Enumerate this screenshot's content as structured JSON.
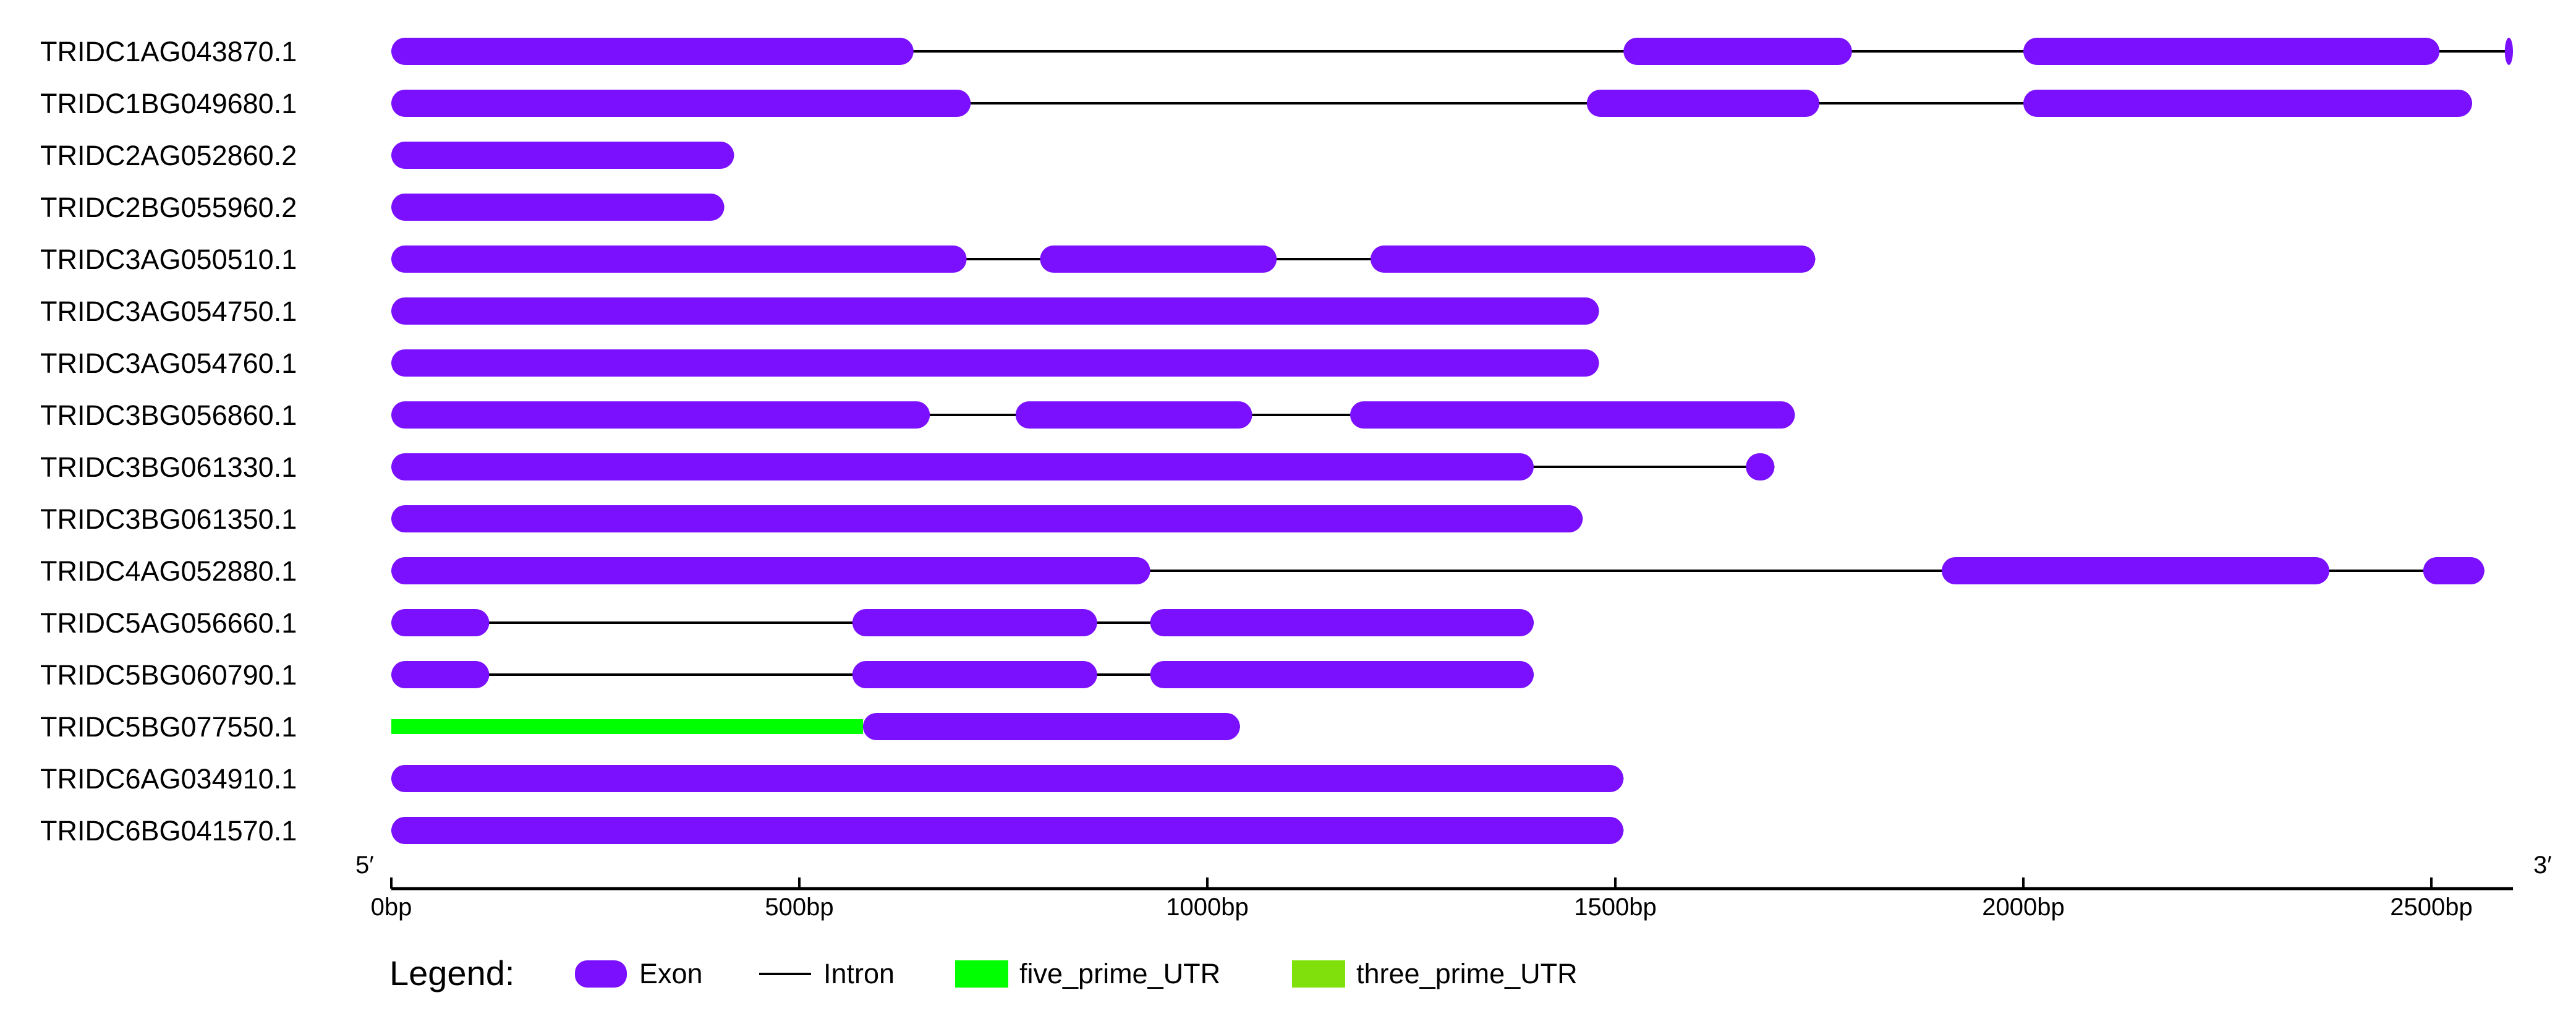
{
  "colors": {
    "exon": "#7B10FF",
    "intron": "#000000",
    "five_prime_UTR": "#00FF00",
    "three_prime_UTR": "#7FE00B"
  },
  "axis": {
    "min_bp": 0,
    "max_bp": 2600,
    "five_prime_label": "5′",
    "three_prime_label": "3′",
    "ticks": [
      {
        "value": 0,
        "label": "0bp"
      },
      {
        "value": 500,
        "label": "500bp"
      },
      {
        "value": 1000,
        "label": "1000bp"
      },
      {
        "value": 1500,
        "label": "1500bp"
      },
      {
        "value": 2000,
        "label": "2000bp"
      },
      {
        "value": 2500,
        "label": "2500bp"
      }
    ]
  },
  "genes": [
    {
      "name": "TRIDC1AG043870.1",
      "exons": [
        [
          0,
          640
        ],
        [
          1510,
          1790
        ],
        [
          2000,
          2510
        ],
        [
          2590,
          2600
        ]
      ],
      "five_prime_UTR": [],
      "three_prime_UTR": []
    },
    {
      "name": "TRIDC1BG049680.1",
      "exons": [
        [
          0,
          710
        ],
        [
          1465,
          1750
        ],
        [
          2000,
          2550
        ]
      ],
      "five_prime_UTR": [],
      "three_prime_UTR": []
    },
    {
      "name": "TRIDC2AG052860.2",
      "exons": [
        [
          0,
          420
        ]
      ],
      "five_prime_UTR": [],
      "three_prime_UTR": []
    },
    {
      "name": "TRIDC2BG055960.2",
      "exons": [
        [
          0,
          408
        ]
      ],
      "five_prime_UTR": [],
      "three_prime_UTR": []
    },
    {
      "name": "TRIDC3AG050510.1",
      "exons": [
        [
          0,
          705
        ],
        [
          795,
          1085
        ],
        [
          1200,
          1745
        ]
      ],
      "five_prime_UTR": [],
      "three_prime_UTR": []
    },
    {
      "name": "TRIDC3AG054750.1",
      "exons": [
        [
          0,
          1480
        ]
      ],
      "five_prime_UTR": [],
      "three_prime_UTR": []
    },
    {
      "name": "TRIDC3AG054760.1",
      "exons": [
        [
          0,
          1480
        ]
      ],
      "five_prime_UTR": [],
      "three_prime_UTR": []
    },
    {
      "name": "TRIDC3BG056860.1",
      "exons": [
        [
          0,
          660
        ],
        [
          765,
          1055
        ],
        [
          1175,
          1720
        ]
      ],
      "five_prime_UTR": [],
      "three_prime_UTR": []
    },
    {
      "name": "TRIDC3BG061330.1",
      "exons": [
        [
          0,
          1400
        ],
        [
          1660,
          1695
        ]
      ],
      "five_prime_UTR": [],
      "three_prime_UTR": []
    },
    {
      "name": "TRIDC3BG061350.1",
      "exons": [
        [
          0,
          1460
        ]
      ],
      "five_prime_UTR": [],
      "three_prime_UTR": []
    },
    {
      "name": "TRIDC4AG052880.1",
      "exons": [
        [
          0,
          930
        ],
        [
          1900,
          2375
        ],
        [
          2490,
          2565
        ]
      ],
      "five_prime_UTR": [],
      "three_prime_UTR": []
    },
    {
      "name": "TRIDC5AG056660.1",
      "exons": [
        [
          0,
          120
        ],
        [
          565,
          865
        ],
        [
          930,
          1400
        ]
      ],
      "five_prime_UTR": [],
      "three_prime_UTR": []
    },
    {
      "name": "TRIDC5BG060790.1",
      "exons": [
        [
          0,
          120
        ],
        [
          565,
          865
        ],
        [
          930,
          1400
        ]
      ],
      "five_prime_UTR": [],
      "three_prime_UTR": []
    },
    {
      "name": "TRIDC5BG077550.1",
      "exons": [
        [
          578,
          1040
        ]
      ],
      "five_prime_UTR": [
        [
          0,
          578
        ]
      ],
      "three_prime_UTR": []
    },
    {
      "name": "TRIDC6AG034910.1",
      "exons": [
        [
          0,
          1510
        ]
      ],
      "five_prime_UTR": [],
      "three_prime_UTR": []
    },
    {
      "name": "TRIDC6BG041570.1",
      "exons": [
        [
          0,
          1510
        ]
      ],
      "five_prime_UTR": [],
      "three_prime_UTR": []
    }
  ],
  "legend": {
    "title": "Legend:",
    "items": [
      {
        "key": "exon",
        "label": "Exon"
      },
      {
        "key": "intron",
        "label": "Intron"
      },
      {
        "key": "five_prime_UTR",
        "label": "five_prime_UTR"
      },
      {
        "key": "three_prime_UTR",
        "label": "three_prime_UTR"
      }
    ]
  }
}
